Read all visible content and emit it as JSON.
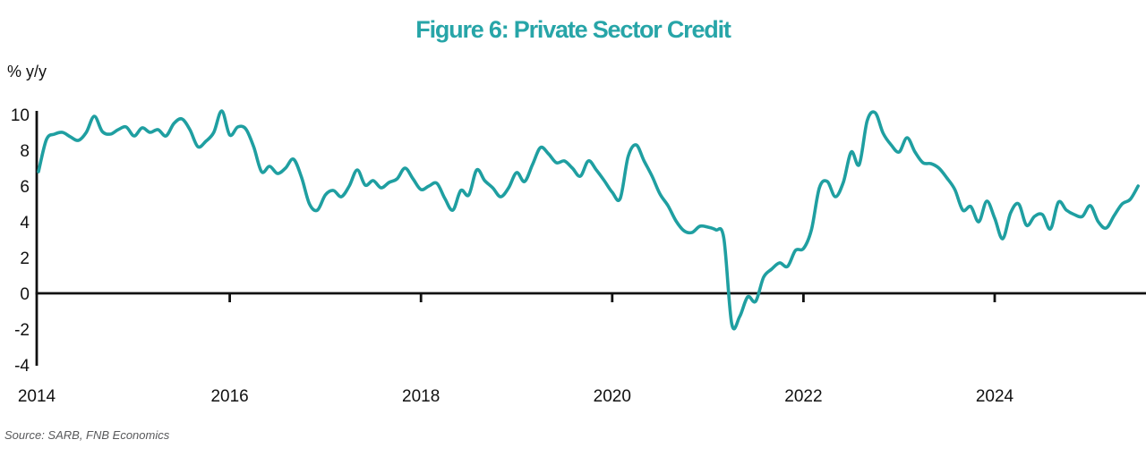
{
  "figure": {
    "title": "Figure 6: Private Sector Credit",
    "y_axis_unit": "% y/y",
    "source": "Source: SARB, FNB Economics"
  },
  "colors": {
    "line_teal": "#1f9fa1",
    "title_teal": "#27a5a8",
    "axis_black": "#111111",
    "source_gray": "#58595b"
  },
  "chart_data": {
    "type": "line",
    "series_name": "Private sector credit growth",
    "frequency": "monthly",
    "start_month": "2014-01",
    "end_month": "2025-07",
    "ylabel": "% y/y",
    "xlabel": "",
    "ylim": [
      -4,
      10.5
    ],
    "grid": false,
    "legend": "none",
    "zero_line": true,
    "y_ticks": [
      10,
      8,
      6,
      4,
      2,
      0,
      -2,
      -4
    ],
    "x_tick_years": [
      2014,
      2016,
      2018,
      2020,
      2022,
      2024
    ],
    "values": [
      6.8,
      8.6,
      8.9,
      9.0,
      8.75,
      8.55,
      9.0,
      9.9,
      9.05,
      8.9,
      9.15,
      9.3,
      8.8,
      9.25,
      9.0,
      9.15,
      8.8,
      9.5,
      9.75,
      9.15,
      8.2,
      8.5,
      9.0,
      10.2,
      8.85,
      9.3,
      9.2,
      8.2,
      6.8,
      7.1,
      6.7,
      7.0,
      7.5,
      6.5,
      5.0,
      4.65,
      5.5,
      5.75,
      5.4,
      6.0,
      6.9,
      6.05,
      6.3,
      5.9,
      6.2,
      6.4,
      7.0,
      6.4,
      5.8,
      6.0,
      6.15,
      5.3,
      4.65,
      5.75,
      5.5,
      6.9,
      6.3,
      5.9,
      5.4,
      5.9,
      6.75,
      6.25,
      7.2,
      8.15,
      7.8,
      7.3,
      7.4,
      7.0,
      6.55,
      7.4,
      6.9,
      6.3,
      5.65,
      5.3,
      7.65,
      8.3,
      7.4,
      6.55,
      5.55,
      4.9,
      4.05,
      3.5,
      3.4,
      3.75,
      3.7,
      3.55,
      3.1,
      -1.7,
      -1.3,
      -0.2,
      -0.45,
      0.9,
      1.35,
      1.7,
      1.5,
      2.4,
      2.5,
      3.55,
      5.9,
      6.25,
      5.4,
      6.2,
      7.9,
      7.2,
      9.65,
      10.1,
      8.95,
      8.3,
      7.9,
      8.7,
      7.9,
      7.3,
      7.25,
      7.0,
      6.45,
      5.8,
      4.65,
      4.85,
      4.0,
      5.15,
      4.2,
      3.05,
      4.5,
      5.0,
      3.8,
      4.3,
      4.4,
      3.6,
      5.1,
      4.65,
      4.4,
      4.3,
      4.9,
      4.0,
      3.65,
      4.35,
      5.0,
      5.25,
      6.0
    ]
  }
}
